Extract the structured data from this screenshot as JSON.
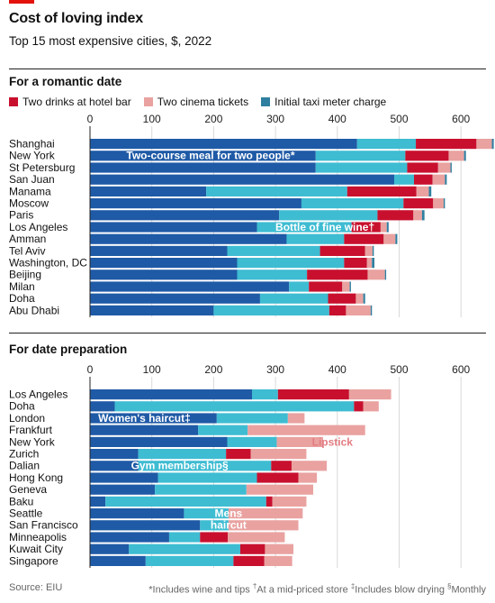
{
  "header": {
    "title": "Cost of loving index",
    "subtitle": "Top 15 most expensive cities, $, 2022"
  },
  "colors": {
    "accent": "#e3120b",
    "dark_blue": "#1f5aa6",
    "light_blue": "#3ebcd2",
    "crimson": "#c8102e",
    "pink": "#e9a2a0",
    "taxi": "#2f7fa0",
    "grid": "#d9d9d9",
    "annot_white": "#ffffff",
    "annot_pink": "#e37c82"
  },
  "sections": {
    "romantic_title": "For a romantic date",
    "prep_title": "For date preparation"
  },
  "legend": {
    "drinks": "Two drinks at hotel bar",
    "cinema": "Two cinema tickets",
    "taxi": "Initial taxi meter charge"
  },
  "footer": {
    "source": "Source: EIU",
    "note_a": "*Includes wine and tips ",
    "sup_dagger": "†",
    "note_b": "At a mid-priced store ",
    "sup_ddagger": "‡",
    "note_c": "Includes blow drying ",
    "sup_section": "§",
    "note_d": "Monthly"
  },
  "chart_data": [
    {
      "type": "bar",
      "orientation": "horizontal",
      "stacked": true,
      "title": "For a romantic date",
      "xlim": [
        0,
        650
      ],
      "ticks": [
        0,
        100,
        200,
        300,
        400,
        500,
        600
      ],
      "grid": true,
      "legend_position": "top",
      "categories": [
        "Shanghai",
        "New York",
        "St Petersburg",
        "San Juan",
        "Manama",
        "Moscow",
        "Paris",
        "Los Angeles",
        "Amman",
        "Tel Aviv",
        "Washington, DC",
        "Beijing",
        "Milan",
        "Doha",
        "Abu Dhabi"
      ],
      "series": [
        {
          "name": "Two-course meal for two people*",
          "color": "#1f5aa6",
          "values": [
            432,
            365,
            365,
            492,
            188,
            342,
            306,
            270,
            318,
            222,
            238,
            238,
            322,
            275,
            200
          ]
        },
        {
          "name": "Bottle of fine wine†",
          "color": "#3ebcd2",
          "values": [
            95,
            145,
            148,
            32,
            228,
            165,
            159,
            153,
            93,
            150,
            173,
            113,
            32,
            110,
            187
          ]
        },
        {
          "name": "Two drinks at hotel bar",
          "color": "#c8102e",
          "values": [
            98,
            70,
            50,
            30,
            112,
            48,
            58,
            47,
            64,
            73,
            37,
            98,
            54,
            45,
            27
          ]
        },
        {
          "name": "Two cinema tickets",
          "color": "#e9a2a0",
          "values": [
            25,
            25,
            20,
            20,
            20,
            17,
            14,
            10,
            19,
            12,
            8,
            28,
            12,
            12,
            40
          ]
        },
        {
          "name": "Initial taxi meter charge",
          "color": "#2f7fa0",
          "values": [
            3,
            3,
            2,
            3,
            4,
            2,
            4,
            3,
            3,
            2,
            4,
            2,
            2,
            3,
            2
          ]
        }
      ],
      "annotations": [
        {
          "text": "Two-course meal for two people*",
          "series": 0,
          "row": 1
        },
        {
          "text": "Bottle of fine wine†",
          "series": 1,
          "row": 7
        }
      ]
    },
    {
      "type": "bar",
      "orientation": "horizontal",
      "stacked": true,
      "title": "For date preparation",
      "xlim": [
        0,
        650
      ],
      "ticks": [
        0,
        100,
        200,
        300,
        400,
        500,
        600
      ],
      "grid": true,
      "categories": [
        "Los Angeles",
        "Doha",
        "London",
        "Frankfurt",
        "New York",
        "Zurich",
        "Dalian",
        "Hong Kong",
        "Geneva",
        "Baku",
        "Seattle",
        "San Francisco",
        "Minneapolis",
        "Kuwait City",
        "Singapore"
      ],
      "series": [
        {
          "name": "Women's haircut‡",
          "color": "#1f5aa6",
          "values": [
            262,
            40,
            205,
            175,
            222,
            78,
            78,
            110,
            105,
            25,
            152,
            178,
            128,
            63,
            90
          ]
        },
        {
          "name": "Gym membership§",
          "color": "#3ebcd2",
          "values": [
            42,
            387,
            115,
            80,
            80,
            142,
            215,
            160,
            148,
            260,
            72,
            46,
            50,
            180,
            142
          ]
        },
        {
          "name": "Lipstick",
          "color": "#c8102e",
          "values": [
            115,
            15,
            0,
            0,
            0,
            40,
            33,
            67,
            0,
            10,
            0,
            0,
            45,
            40,
            50
          ]
        },
        {
          "name": "Mens haircut",
          "color": "#e9a2a0",
          "values": [
            68,
            25,
            27,
            190,
            75,
            90,
            57,
            30,
            108,
            55,
            120,
            113,
            92,
            46,
            45
          ]
        }
      ],
      "annotations": [
        {
          "text": "Women's haircut‡",
          "series": 0,
          "row": 2
        },
        {
          "text": "Lipstick",
          "series": 2,
          "row": 4
        },
        {
          "text": "Gym membership§",
          "series": 1,
          "row": 6
        },
        {
          "text": "Mens",
          "series": 2,
          "row": 10
        },
        {
          "text": "haircut",
          "series": 2,
          "row": 11
        }
      ]
    }
  ]
}
